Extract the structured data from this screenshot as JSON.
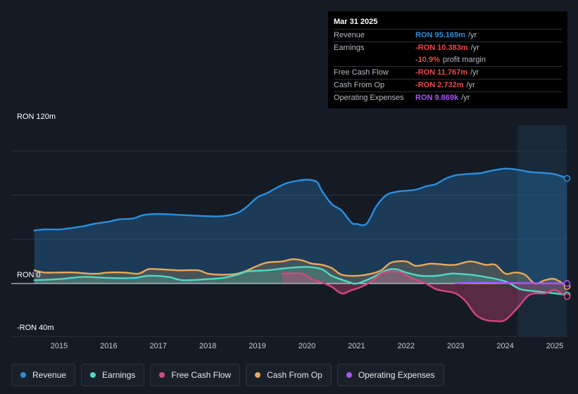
{
  "tooltip": {
    "date": "Mar 31 2025",
    "rows": [
      {
        "label": "Revenue",
        "value": "RON 95.169m",
        "unit": "/yr"
      },
      {
        "label": "Earnings",
        "value": "-RON 10.383m",
        "unit": "/yr"
      },
      {
        "label": "",
        "value": "-10.9%",
        "unit": "profit margin"
      },
      {
        "label": "Free Cash Flow",
        "value": "-RON 11.767m",
        "unit": "/yr"
      },
      {
        "label": "Cash From Op",
        "value": "-RON 2.732m",
        "unit": "/yr"
      },
      {
        "label": "Operating Expenses",
        "value": "RON 9.869k",
        "unit": "/yr"
      }
    ]
  },
  "axis": {
    "top_label": "RON 120m",
    "zero_label": "RON 0",
    "bottom_label": "-RON 40m"
  },
  "legend": [
    {
      "label": "Revenue",
      "color": "#2a8fe0"
    },
    {
      "label": "Earnings",
      "color": "#4fd8c4"
    },
    {
      "label": "Free Cash Flow",
      "color": "#d6477d"
    },
    {
      "label": "Cash From Op",
      "color": "#e8a95a"
    },
    {
      "label": "Operating Expenses",
      "color": "#a855f7"
    }
  ],
  "chart_data": {
    "type": "area",
    "ylim": [
      -40,
      120
    ],
    "ylabel": "RON",
    "x_ticks": [
      2015,
      2016,
      2017,
      2018,
      2019,
      2020,
      2021,
      2022,
      2023,
      2024,
      2025
    ],
    "x_tick_labels": [
      "2015",
      "2016",
      "2017",
      "2018",
      "2019",
      "2020",
      "2021",
      "2022",
      "2023",
      "2024",
      "2025"
    ],
    "forecast_shaded_from": 2024.25,
    "series": [
      {
        "name": "Revenue",
        "color": "#2a8fe0",
        "points": [
          [
            2014.5,
            48
          ],
          [
            2014.7,
            49
          ],
          [
            2015.0,
            49
          ],
          [
            2015.2,
            50
          ],
          [
            2015.5,
            52
          ],
          [
            2015.7,
            54
          ],
          [
            2016.0,
            56
          ],
          [
            2016.2,
            58
          ],
          [
            2016.5,
            59
          ],
          [
            2016.7,
            62
          ],
          [
            2017.0,
            63
          ],
          [
            2017.5,
            62
          ],
          [
            2018.0,
            61
          ],
          [
            2018.3,
            61
          ],
          [
            2018.6,
            64
          ],
          [
            2018.8,
            70
          ],
          [
            2019.0,
            78
          ],
          [
            2019.2,
            82
          ],
          [
            2019.4,
            87
          ],
          [
            2019.6,
            91
          ],
          [
            2019.8,
            93
          ],
          [
            2020.0,
            94
          ],
          [
            2020.2,
            92
          ],
          [
            2020.3,
            84
          ],
          [
            2020.5,
            72
          ],
          [
            2020.7,
            66
          ],
          [
            2020.9,
            55
          ],
          [
            2021.0,
            54
          ],
          [
            2021.2,
            54
          ],
          [
            2021.4,
            70
          ],
          [
            2021.6,
            80
          ],
          [
            2021.8,
            83
          ],
          [
            2022.0,
            84
          ],
          [
            2022.2,
            85
          ],
          [
            2022.4,
            88
          ],
          [
            2022.6,
            90
          ],
          [
            2022.8,
            95
          ],
          [
            2023.0,
            98
          ],
          [
            2023.2,
            99
          ],
          [
            2023.5,
            100
          ],
          [
            2023.7,
            102
          ],
          [
            2024.0,
            104
          ],
          [
            2024.25,
            103
          ],
          [
            2024.5,
            101
          ],
          [
            2024.8,
            100
          ],
          [
            2025.0,
            99
          ],
          [
            2025.25,
            95.2
          ]
        ]
      },
      {
        "name": "Earnings",
        "color": "#4fd8c4",
        "points": [
          [
            2014.5,
            3
          ],
          [
            2015.0,
            4
          ],
          [
            2015.5,
            6
          ],
          [
            2016.0,
            5
          ],
          [
            2016.5,
            5
          ],
          [
            2016.8,
            7
          ],
          [
            2017.2,
            6
          ],
          [
            2017.5,
            3
          ],
          [
            2018.0,
            4
          ],
          [
            2018.3,
            5
          ],
          [
            2018.6,
            8
          ],
          [
            2018.8,
            11
          ],
          [
            2019.2,
            12
          ],
          [
            2019.6,
            14
          ],
          [
            2020.0,
            15
          ],
          [
            2020.3,
            13
          ],
          [
            2020.5,
            7
          ],
          [
            2020.8,
            2
          ],
          [
            2021.0,
            0
          ],
          [
            2021.3,
            5
          ],
          [
            2021.6,
            12
          ],
          [
            2021.8,
            13
          ],
          [
            2022.0,
            10
          ],
          [
            2022.3,
            7
          ],
          [
            2022.6,
            7
          ],
          [
            2022.9,
            9
          ],
          [
            2023.0,
            9
          ],
          [
            2023.3,
            8
          ],
          [
            2023.6,
            6
          ],
          [
            2024.0,
            2
          ],
          [
            2024.3,
            -5
          ],
          [
            2024.6,
            -7
          ],
          [
            2025.0,
            -9
          ],
          [
            2025.25,
            -10.4
          ]
        ]
      },
      {
        "name": "Free Cash Flow",
        "color": "#d6477d",
        "points": [
          [
            2019.5,
            9
          ],
          [
            2019.9,
            9
          ],
          [
            2020.1,
            4
          ],
          [
            2020.3,
            1
          ],
          [
            2020.5,
            -3
          ],
          [
            2020.7,
            -9
          ],
          [
            2020.9,
            -6
          ],
          [
            2021.1,
            -3
          ],
          [
            2021.3,
            2
          ],
          [
            2021.5,
            9
          ],
          [
            2021.7,
            11
          ],
          [
            2021.9,
            10
          ],
          [
            2022.1,
            5
          ],
          [
            2022.4,
            0
          ],
          [
            2022.6,
            -5
          ],
          [
            2022.8,
            -7
          ],
          [
            2023.0,
            -9
          ],
          [
            2023.2,
            -16
          ],
          [
            2023.4,
            -28
          ],
          [
            2023.6,
            -33
          ],
          [
            2023.8,
            -34
          ],
          [
            2024.0,
            -33
          ],
          [
            2024.25,
            -22
          ],
          [
            2024.5,
            -10
          ],
          [
            2024.8,
            -9
          ],
          [
            2025.0,
            -6
          ],
          [
            2025.25,
            -11.8
          ]
        ]
      },
      {
        "name": "Cash From Op",
        "color": "#e8a95a",
        "points": [
          [
            2014.5,
            12
          ],
          [
            2014.7,
            10
          ],
          [
            2015.0,
            10
          ],
          [
            2015.3,
            10
          ],
          [
            2015.6,
            9
          ],
          [
            2015.8,
            9
          ],
          [
            2016.0,
            10
          ],
          [
            2016.3,
            10
          ],
          [
            2016.6,
            9
          ],
          [
            2016.8,
            13
          ],
          [
            2017.0,
            13
          ],
          [
            2017.4,
            12
          ],
          [
            2017.8,
            12
          ],
          [
            2018.0,
            9
          ],
          [
            2018.3,
            8
          ],
          [
            2018.6,
            9
          ],
          [
            2018.8,
            12
          ],
          [
            2019.0,
            16
          ],
          [
            2019.2,
            19
          ],
          [
            2019.5,
            20
          ],
          [
            2019.7,
            22
          ],
          [
            2019.9,
            21
          ],
          [
            2020.1,
            18
          ],
          [
            2020.3,
            17
          ],
          [
            2020.5,
            14
          ],
          [
            2020.7,
            8
          ],
          [
            2021.0,
            7
          ],
          [
            2021.3,
            9
          ],
          [
            2021.5,
            12
          ],
          [
            2021.7,
            19
          ],
          [
            2022.0,
            20
          ],
          [
            2022.2,
            16
          ],
          [
            2022.5,
            18
          ],
          [
            2022.8,
            17
          ],
          [
            2023.0,
            17
          ],
          [
            2023.3,
            20
          ],
          [
            2023.6,
            17
          ],
          [
            2023.8,
            17
          ],
          [
            2024.0,
            9
          ],
          [
            2024.2,
            10
          ],
          [
            2024.4,
            8
          ],
          [
            2024.6,
            0
          ],
          [
            2024.8,
            3
          ],
          [
            2025.0,
            4
          ],
          [
            2025.25,
            -2.7
          ]
        ]
      },
      {
        "name": "Operating Expenses",
        "color": "#a855f7",
        "points": [
          [
            2023.0,
            0.5
          ],
          [
            2023.5,
            0.8
          ],
          [
            2024.0,
            0.6
          ],
          [
            2024.5,
            0.3
          ],
          [
            2025.0,
            0.1
          ],
          [
            2025.25,
            0.01
          ]
        ]
      }
    ]
  }
}
